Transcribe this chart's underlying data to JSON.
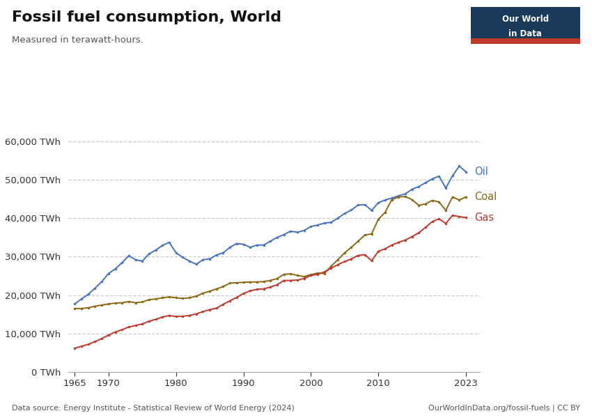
{
  "title": "Fossil fuel consumption, World",
  "subtitle": "Measured in terawatt-hours.",
  "data_source": "Data source: Energy Institute - Statistical Review of World Energy (2024)",
  "url": "OurWorldInData.org/fossil-fuels | CC BY",
  "background_color": "#ffffff",
  "grid_color": "#cccccc",
  "years": [
    1965,
    1966,
    1967,
    1968,
    1969,
    1970,
    1971,
    1972,
    1973,
    1974,
    1975,
    1976,
    1977,
    1978,
    1979,
    1980,
    1981,
    1982,
    1983,
    1984,
    1985,
    1986,
    1987,
    1988,
    1989,
    1990,
    1991,
    1992,
    1993,
    1994,
    1995,
    1996,
    1997,
    1998,
    1999,
    2000,
    2001,
    2002,
    2003,
    2004,
    2005,
    2006,
    2007,
    2008,
    2009,
    2010,
    2011,
    2012,
    2013,
    2014,
    2015,
    2016,
    2017,
    2018,
    2019,
    2020,
    2021,
    2022,
    2023
  ],
  "oil": [
    17700,
    19000,
    20200,
    21800,
    23500,
    25600,
    26800,
    28400,
    30200,
    29200,
    28800,
    30700,
    31700,
    32900,
    33700,
    31000,
    29800,
    28800,
    28000,
    29200,
    29400,
    30400,
    31000,
    32400,
    33400,
    33200,
    32400,
    33000,
    33000,
    34000,
    35000,
    35700,
    36600,
    36300,
    36800,
    37800,
    38200,
    38700,
    38900,
    40000,
    41200,
    42100,
    43400,
    43500,
    42000,
    44000,
    44700,
    45200,
    45800,
    46300,
    47500,
    48200,
    49200,
    50200,
    50900,
    47800,
    51000,
    53500,
    52000
  ],
  "coal": [
    16500,
    16500,
    16700,
    17100,
    17400,
    17700,
    17900,
    18000,
    18300,
    18000,
    18200,
    18800,
    19000,
    19300,
    19500,
    19300,
    19100,
    19300,
    19700,
    20500,
    21000,
    21600,
    22200,
    23100,
    23200,
    23300,
    23400,
    23400,
    23500,
    23800,
    24300,
    25400,
    25500,
    25100,
    24800,
    25300,
    25700,
    25600,
    27500,
    29200,
    31000,
    32400,
    34000,
    35600,
    35900,
    39700,
    41500,
    44800,
    45500,
    45600,
    44800,
    43300,
    43700,
    44600,
    44200,
    42000,
    45500,
    44700,
    45500
  ],
  "gas": [
    6200,
    6700,
    7200,
    7900,
    8700,
    9600,
    10400,
    11000,
    11700,
    12100,
    12500,
    13200,
    13700,
    14300,
    14700,
    14400,
    14500,
    14700,
    15100,
    15700,
    16200,
    16600,
    17600,
    18500,
    19400,
    20400,
    21100,
    21500,
    21600,
    22100,
    22700,
    23800,
    23800,
    23900,
    24300,
    25100,
    25400,
    26000,
    27000,
    27900,
    28700,
    29400,
    30300,
    30500,
    28900,
    31400,
    32000,
    33000,
    33700,
    34300,
    35200,
    36200,
    37600,
    39100,
    39800,
    38600,
    40700,
    40400,
    40100
  ],
  "oil_color": "#4472c4",
  "coal_color": "#8b6914",
  "gas_color": "#c0392b",
  "logo_bg": "#1a3a5c",
  "logo_red": "#c0392b",
  "ylim": [
    0,
    63000
  ],
  "yticks": [
    0,
    10000,
    20000,
    30000,
    40000,
    50000,
    60000
  ],
  "xticks": [
    1965,
    1970,
    1980,
    1990,
    2000,
    2010,
    2023
  ]
}
